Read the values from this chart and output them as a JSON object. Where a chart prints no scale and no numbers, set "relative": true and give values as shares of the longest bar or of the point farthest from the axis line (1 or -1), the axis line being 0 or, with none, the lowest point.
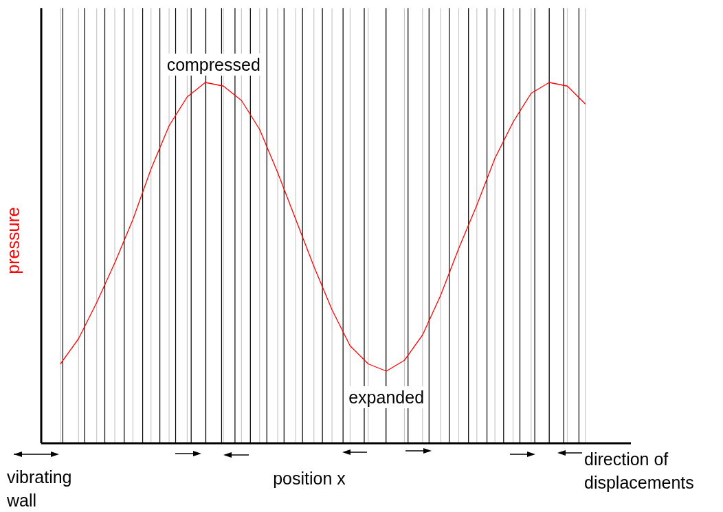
{
  "chart_data": {
    "type": "line",
    "relative": true,
    "xlabel": "position x",
    "ylabel": "pressure",
    "grid": "x",
    "categories": [
      null,
      null,
      null,
      null,
      null,
      null,
      null,
      null,
      null,
      null,
      null,
      null,
      null,
      null,
      null,
      null,
      null,
      null,
      null,
      null,
      null,
      null,
      null,
      null,
      null,
      null,
      null,
      null,
      null,
      null
    ],
    "series": [
      {
        "color": "#ff0000",
        "values": [
          0.22,
          0.29,
          0.39,
          0.5,
          0.62,
          0.76,
          0.88,
          0.96,
          1,
          0.99,
          0.95,
          0.87,
          0.75,
          0.62,
          0.49,
          0.37,
          0.27,
          0.22,
          0.2,
          0.23,
          0.3,
          0.41,
          0.54,
          0.66,
          0.79,
          0.89,
          0.97,
          1,
          0.99,
          0.94
        ]
      }
    ],
    "annotations": [
      "compressed",
      "expanded",
      "vibrating wall",
      "direction of displacements"
    ]
  }
}
